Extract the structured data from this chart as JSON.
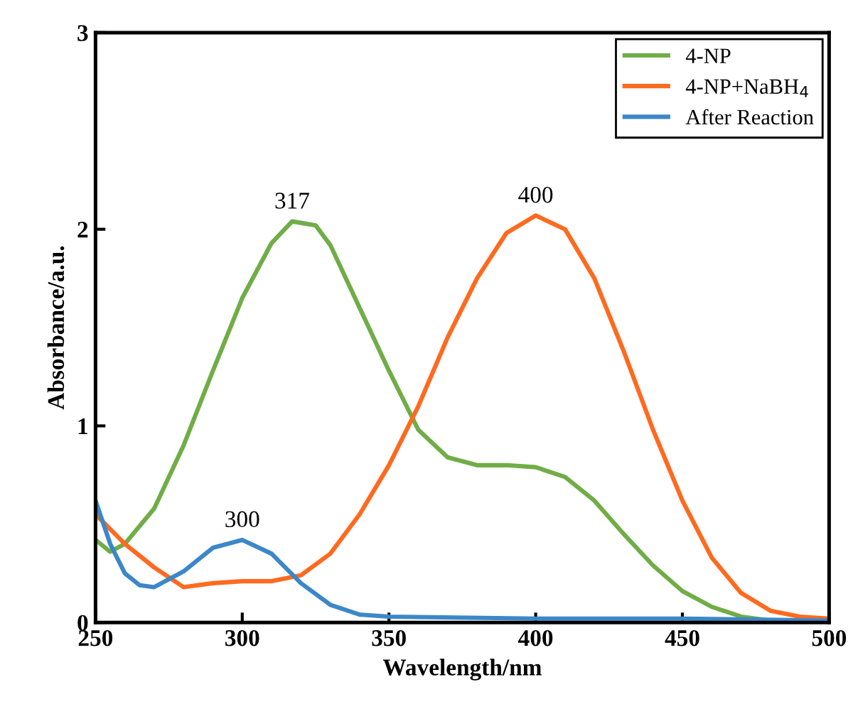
{
  "chart_data": {
    "type": "line",
    "xlabel": "Wavelength/nm",
    "ylabel": "Absorbance/a.u.",
    "xlim": [
      250,
      500
    ],
    "xticks": [
      250,
      300,
      350,
      400,
      450,
      500
    ],
    "ylim": [
      0,
      3
    ],
    "yticks": [
      0,
      1,
      2,
      3
    ],
    "grid": false,
    "legend": "top right",
    "marker": "none",
    "line_style": "solid",
    "series": [
      {
        "name": "4-NP",
        "color": "#70ad47",
        "x": [
          250,
          255,
          260,
          270,
          280,
          290,
          300,
          310,
          317,
          325,
          330,
          340,
          350,
          360,
          370,
          380,
          390,
          400,
          410,
          420,
          430,
          440,
          450,
          460,
          470,
          480,
          490,
          500
        ],
        "values": [
          0.42,
          0.36,
          0.4,
          0.58,
          0.9,
          1.28,
          1.65,
          1.93,
          2.04,
          2.02,
          1.92,
          1.6,
          1.28,
          0.98,
          0.84,
          0.8,
          0.8,
          0.79,
          0.74,
          0.62,
          0.45,
          0.29,
          0.16,
          0.08,
          0.03,
          0.01,
          0,
          0
        ]
      },
      {
        "name": "4-NP+NaBH$_{4}$",
        "color": "#ff6a1f",
        "x": [
          250,
          260,
          270,
          280,
          290,
          300,
          310,
          320,
          330,
          340,
          350,
          360,
          370,
          380,
          390,
          400,
          410,
          420,
          430,
          440,
          450,
          460,
          470,
          480,
          490,
          500
        ],
        "values": [
          0.55,
          0.4,
          0.28,
          0.18,
          0.2,
          0.21,
          0.21,
          0.24,
          0.35,
          0.55,
          0.8,
          1.1,
          1.45,
          1.75,
          1.98,
          2.07,
          2.0,
          1.75,
          1.38,
          0.98,
          0.62,
          0.33,
          0.15,
          0.06,
          0.03,
          0.02
        ]
      },
      {
        "name": "After Reaction",
        "color": "#3c87c8",
        "x": [
          250,
          255,
          260,
          265,
          270,
          280,
          290,
          300,
          310,
          320,
          330,
          340,
          350,
          400,
          450,
          500
        ],
        "values": [
          0.62,
          0.4,
          0.25,
          0.19,
          0.18,
          0.26,
          0.38,
          0.42,
          0.35,
          0.2,
          0.09,
          0.04,
          0.03,
          0.02,
          0.02,
          0.01
        ]
      }
    ],
    "annotations": [
      {
        "text": "317",
        "x": 317,
        "y": 2.04
      },
      {
        "text": "400",
        "x": 400,
        "y": 2.07
      },
      {
        "text": "300",
        "x": 300,
        "y": 0.42
      }
    ]
  }
}
